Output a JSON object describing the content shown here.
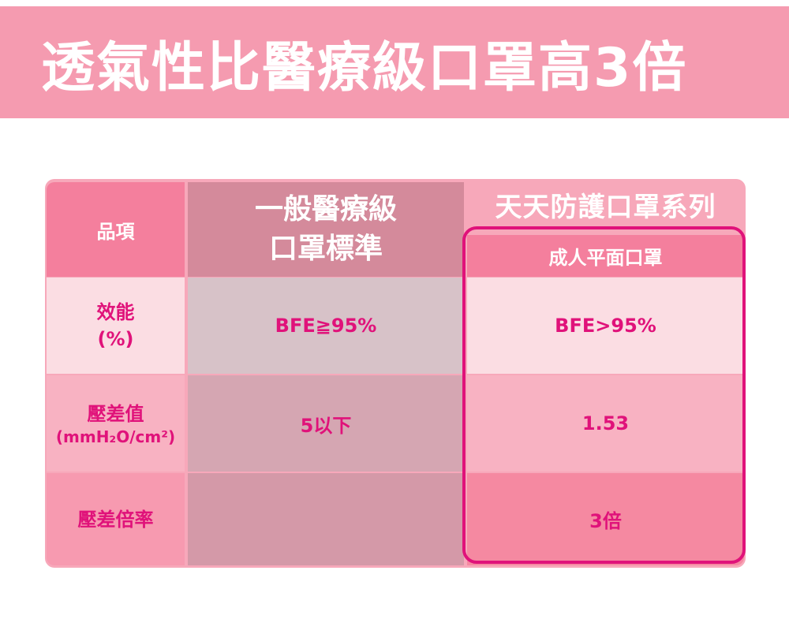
{
  "banner": {
    "title": "透氣性比醫療級口罩高3倍"
  },
  "table": {
    "header": {
      "item_label": "品項",
      "standard_line1": "一般醫療級",
      "standard_line2": "口罩標準",
      "series_title": "天天防護口罩系列",
      "product_name": "成人平面口罩"
    },
    "rows": [
      {
        "label": "效能",
        "unit": "(%)",
        "standard": "BFE≧95%",
        "product": "BFE>95%"
      },
      {
        "label": "壓差值",
        "unit": "(mmH₂O/cm²)",
        "standard": "5以下",
        "product": "1.53"
      },
      {
        "label": "壓差倍率",
        "unit": "",
        "standard": "",
        "product": "3倍"
      }
    ]
  },
  "colors": {
    "banner_bg": "#f59bb0",
    "accent": "#e0127a",
    "header_pink": "#f47f9d"
  }
}
